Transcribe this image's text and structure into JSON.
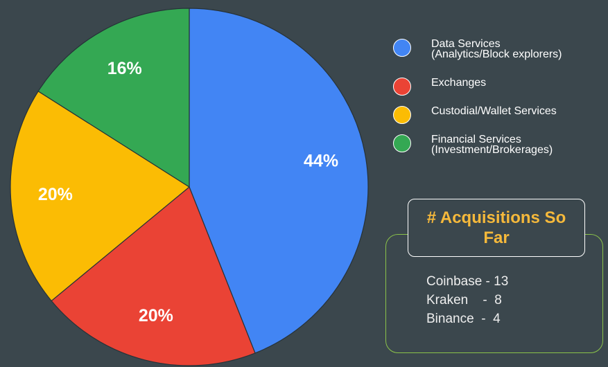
{
  "chart_data": {
    "type": "pie",
    "categories": [
      "Data Services (Analytics/Block explorers)",
      "Exchanges",
      "Custodial/Wallet Services",
      "Financial Services (Investment/Brokerages)"
    ],
    "values": [
      44,
      20,
      20,
      16
    ],
    "value_labels": [
      "44%",
      "20%",
      "20%",
      "16%"
    ],
    "colors": [
      "#4285f4",
      "#ea4335",
      "#fbbc04",
      "#34a853"
    ],
    "legend": "right",
    "annotation": {
      "title": "# Acquisitions So Far",
      "lines": [
        "Coinbase - 13",
        "Kraken    -  8",
        "Binance  -  4"
      ]
    }
  }
}
